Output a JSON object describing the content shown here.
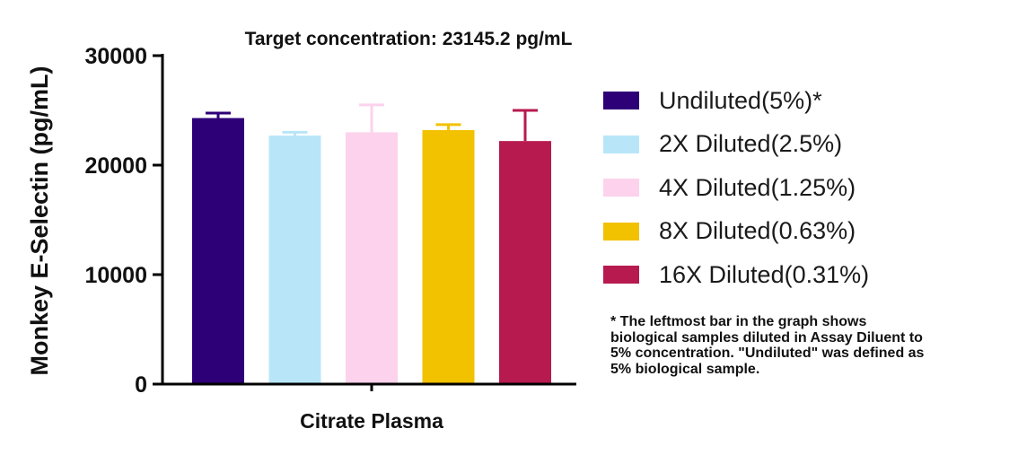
{
  "chart_data": {
    "type": "bar",
    "title": "Target concentration: 23145.2 pg/mL",
    "xlabel": "Citrate Plasma",
    "ylabel": "Monkey E-Selectin (pg/mL)",
    "ylim": [
      0,
      30000
    ],
    "yticks": [
      "0",
      "10000",
      "20000",
      "30000"
    ],
    "legend_position": "right",
    "grid": false,
    "series": [
      {
        "name": "Undiluted(5%)*",
        "value": 24300,
        "error": 450,
        "color": "#2e0077"
      },
      {
        "name": "2X Diluted(2.5%)",
        "value": 22700,
        "error": 300,
        "color": "#b8e6f8"
      },
      {
        "name": "4X Diluted(1.25%)",
        "value": 23000,
        "error": 2500,
        "color": "#fcd2ec"
      },
      {
        "name": "8X Diluted(0.63%)",
        "value": 23200,
        "error": 500,
        "color": "#f2c100"
      },
      {
        "name": "16X Diluted(0.31%)",
        "value": 22200,
        "error": 2800,
        "color": "#b71a4f"
      }
    ]
  },
  "footnote": [
    "* The leftmost bar in the graph shows",
    "biological samples diluted in Assay Diluent to",
    "5% concentration. \"Undiluted\" was defined as",
    "5% biological sample."
  ]
}
